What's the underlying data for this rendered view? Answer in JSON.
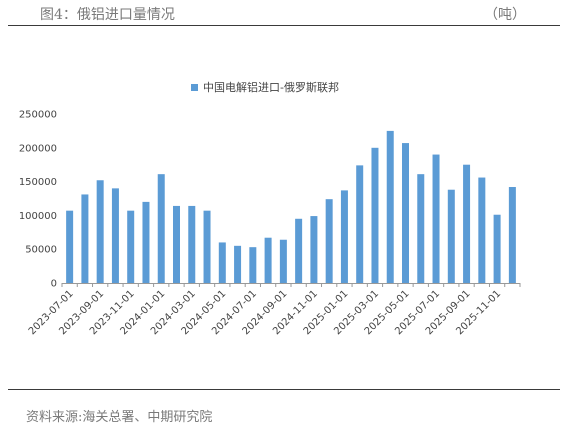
{
  "header": {
    "figure_title": "图4：俄铝进口量情况",
    "unit": "（吨）"
  },
  "footer": {
    "source": "资料来源:海关总署、中期研究院"
  },
  "chart_data": {
    "type": "bar",
    "title": "",
    "xlabel": "",
    "ylabel": "",
    "legend": {
      "position": "top-center",
      "entries": [
        "中国电解铝进口-俄罗斯联邦"
      ]
    },
    "series": [
      {
        "name": "中国电解铝进口-俄罗斯联邦",
        "color": "#5b9bd5",
        "values": [
          107000,
          131000,
          152000,
          140000,
          107000,
          120000,
          161000,
          114000,
          114000,
          107000,
          60000,
          55000,
          53000,
          67000,
          64000,
          95000,
          99000,
          124000,
          137000,
          174000,
          200000,
          225000,
          207000,
          161000,
          190000,
          138000,
          175000,
          156000,
          101000,
          142000
        ]
      }
    ],
    "categories": [
      "2023-07-01",
      "2023-08-01",
      "2023-09-01",
      "2023-10-01",
      "2023-11-01",
      "2023-12-01",
      "2024-01-01",
      "2024-02-01",
      "2024-03-01",
      "2024-04-01",
      "2024-05-01",
      "2024-06-01",
      "2024-07-01",
      "2024-08-01",
      "2024-09-01",
      "2024-10-01",
      "2024-11-01",
      "2024-12-01",
      "2025-01-01",
      "2025-02-01",
      "2025-03-01",
      "2025-04-01",
      "2025-05-01",
      "2025-06-01",
      "2025-07-01",
      "2025-08-01",
      "2025-09-01",
      "2025-10-01",
      "2025-11-01",
      "2025-12-01"
    ],
    "shown_tick_labels": [
      "2023-07-01",
      "2023-09-01",
      "2023-11-01",
      "2024-01-01",
      "2024-03-01",
      "2024-05-01",
      "2024-07-01",
      "2024-09-01",
      "2024-11-01",
      "2025-01-01",
      "2025-03-01",
      "2025-05-01",
      "2025-07-01",
      "2025-09-01",
      "2025-11-01"
    ],
    "y_ticks": [
      0,
      50000,
      100000,
      150000,
      200000,
      250000
    ],
    "ylim": [
      0,
      250000
    ],
    "grid": false
  }
}
